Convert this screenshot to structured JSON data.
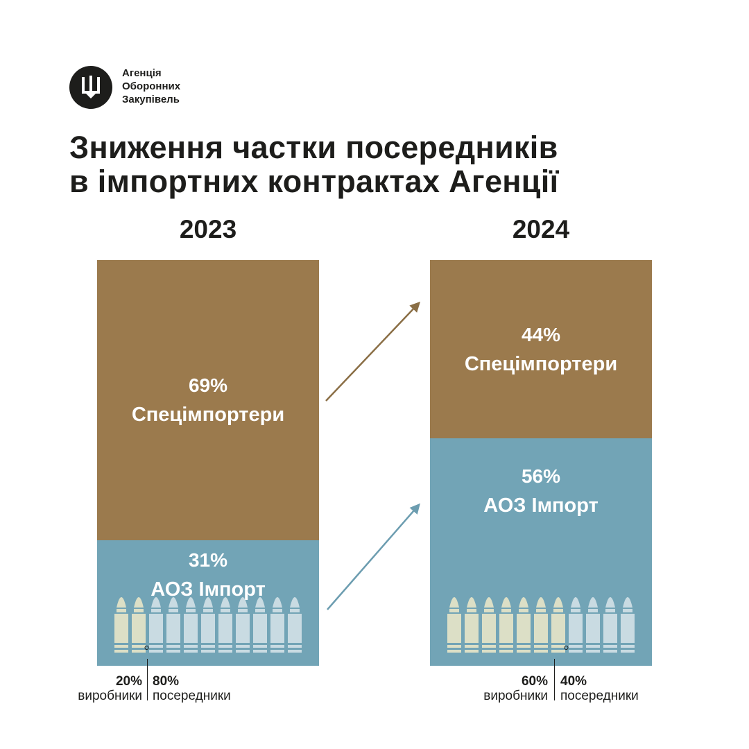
{
  "logo": {
    "lines": [
      "Агенція",
      "Оборонних",
      "Закупівель"
    ],
    "icon": "trident-shield-icon"
  },
  "title": {
    "line1": "Зниження частки посередників",
    "line2": "в імпортних контрактах Агенції"
  },
  "colors": {
    "brown": "#9b7a4d",
    "blue": "#72a4b6",
    "bullet_light": "#c9dbe2",
    "bullet_cream": "#dcdfc6",
    "arrow_brown": "#8a6e45",
    "arrow_blue": "#6c9db0"
  },
  "chart_data": {
    "type": "bar",
    "stacked": true,
    "percent": true,
    "categories": [
      "2023",
      "2024"
    ],
    "series": [
      {
        "name": "Спецімпортери",
        "values": [
          69,
          44
        ],
        "color": "#9b7a4d"
      },
      {
        "name": "АОЗ Імпорт",
        "values": [
          31,
          56
        ],
        "color": "#72a4b6"
      }
    ],
    "labels": {
      "2023": {
        "special": "69%",
        "aoz": "31%"
      },
      "2024": {
        "special": "44%",
        "aoz": "56%"
      }
    },
    "breakdown": [
      {
        "year": "2023",
        "producers_pct": "20%",
        "producers_label": "виробники",
        "intermediaries_pct": "80%",
        "intermediaries_label": "посередники",
        "producers_value": 20,
        "intermediaries_value": 80
      },
      {
        "year": "2024",
        "producers_pct": "60%",
        "producers_label": "виробники",
        "intermediaries_pct": "40%",
        "intermediaries_label": "посередники",
        "producers_value": 60,
        "intermediaries_value": 40
      }
    ]
  }
}
